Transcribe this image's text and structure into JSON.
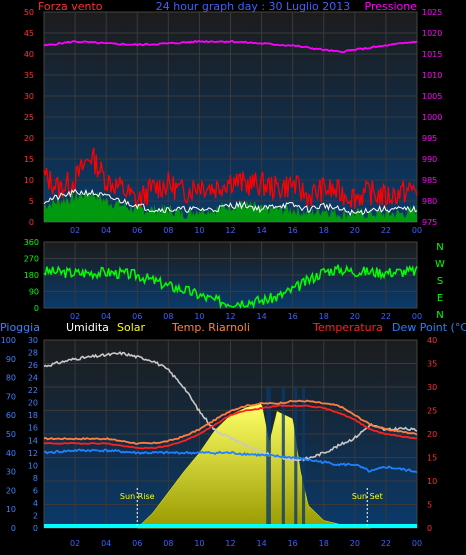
{
  "colors": {
    "wind_gust": "#ff0000",
    "wind_avg": "#00aa00",
    "wind_dir_line": "#ffffff",
    "pressure": "#ff00ff",
    "direction": "#00ff00",
    "rain": "#00ffff",
    "humidity": "#c8c8c8",
    "solar": "#ffff00",
    "heat_index": "#ff8040",
    "temperature": "#ff2020",
    "dew_point": "#2080ff",
    "axis_blue": "#4060ff",
    "axis_red": "#ff3030",
    "axis_green": "#00ff00",
    "axis_magenta": "#ff00ff"
  },
  "chart_data": [
    {
      "type": "line",
      "title": "24 hour graph day : 30 Luglio 2013",
      "left_label": "Forza vento ",
      "right_label": "Pressione",
      "x_ticks": [
        "02",
        "04",
        "06",
        "08",
        "10",
        "12",
        "14",
        "16",
        "18",
        "20",
        "22",
        "00"
      ],
      "y_left_ticks": [
        "0",
        "5",
        "10",
        "15",
        "20",
        "25",
        "30",
        "35",
        "40",
        "45",
        "50"
      ],
      "y_right_ticks": [
        "975",
        "980",
        "985",
        "990",
        "995",
        "1000",
        "1005",
        "1010",
        "1015",
        "1020",
        "1025"
      ],
      "ylim_left": [
        0,
        50
      ],
      "ylim_right": [
        975,
        1025
      ],
      "series": [
        {
          "name": "Pressione",
          "axis": "right",
          "x": [
            0,
            2,
            4,
            6,
            8,
            10,
            12,
            14,
            16,
            18,
            19,
            20,
            22,
            24
          ],
          "y": [
            1017,
            1018,
            1017.5,
            1017.2,
            1017.5,
            1018,
            1018,
            1017.5,
            1017,
            1016,
            1015.5,
            1016,
            1017,
            1018
          ]
        },
        {
          "name": "Forza vento",
          "axis": "left",
          "x": [
            0,
            1,
            2,
            3,
            4,
            5,
            6,
            7,
            8,
            9,
            10,
            11,
            12,
            13,
            14,
            15,
            16,
            17,
            18,
            19,
            20,
            21,
            22,
            23,
            24
          ],
          "y": [
            11,
            8,
            10,
            16,
            10,
            8,
            5,
            8,
            9,
            7,
            9,
            8,
            10,
            9,
            9,
            8,
            9,
            6,
            8,
            7,
            6,
            7,
            6,
            7,
            8
          ]
        },
        {
          "name": "",
          "axis": "left",
          "x": [
            0,
            1,
            2,
            3,
            4,
            5,
            6,
            7,
            8,
            9,
            10,
            11,
            12,
            13,
            14,
            15,
            16,
            17,
            18,
            19,
            20,
            21,
            22,
            23,
            24
          ],
          "y": [
            4,
            5,
            6,
            7,
            5,
            4,
            3,
            3,
            3,
            2,
            3,
            3,
            4,
            4,
            3,
            3,
            3,
            2,
            3,
            2,
            2,
            2,
            2,
            2,
            3
          ]
        },
        {
          "name": "",
          "axis": "left",
          "x": [
            0,
            1,
            2,
            3,
            4,
            5,
            6,
            7,
            8,
            9,
            10,
            11,
            12,
            13,
            14,
            15,
            16,
            17,
            18,
            19,
            20,
            21,
            22,
            23,
            24
          ],
          "y": [
            5,
            6,
            7,
            7,
            6,
            5,
            4,
            3,
            3,
            3,
            3,
            3,
            4,
            4,
            3,
            4,
            4,
            3,
            4,
            3,
            2,
            3,
            3,
            3,
            3
          ]
        }
      ]
    },
    {
      "type": "line",
      "right_letters": [
        "N",
        "W",
        "S",
        "E",
        "N"
      ],
      "x_ticks": [
        "02",
        "04",
        "06",
        "08",
        "10",
        "12",
        "14",
        "16",
        "18",
        "20",
        "22",
        "00"
      ],
      "y_ticks": [
        "0",
        "90",
        "180",
        "270",
        "360"
      ],
      "ylim": [
        0,
        360
      ],
      "series": [
        {
          "name": "",
          "x": [
            0,
            2,
            4,
            6,
            7,
            8,
            9,
            10,
            11,
            12,
            13,
            14,
            15,
            16,
            17,
            18,
            19,
            20,
            22,
            24
          ],
          "y": [
            200,
            190,
            195,
            180,
            150,
            120,
            100,
            70,
            40,
            30,
            35,
            40,
            60,
            100,
            150,
            200,
            210,
            200,
            195,
            200
          ]
        }
      ]
    },
    {
      "type": "line",
      "labels": {
        "rain": "Pioggia",
        "humidity": "Umidita",
        "solar": "Solar",
        "heat": "Temp. Riarnoli",
        "temp": "Temperatura",
        "dew": "Dew Point (°C)"
      },
      "annotations": {
        "sunrise": "Sun Rise",
        "sunset": "Sun Set"
      },
      "sunrise_hour": 6,
      "sunset_hour": 20.8,
      "x_ticks": [
        "02",
        "04",
        "06",
        "08",
        "10",
        "12",
        "14",
        "16",
        "18",
        "20",
        "22",
        "00"
      ],
      "y_left1_ticks": [
        "0",
        "10",
        "20",
        "30",
        "40",
        "50",
        "60",
        "70",
        "80",
        "90",
        "100"
      ],
      "y_left2_ticks": [
        "0",
        "2",
        "4",
        "6",
        "8",
        "10",
        "12",
        "14",
        "16",
        "18",
        "20",
        "22",
        "24",
        "26",
        "28",
        "30"
      ],
      "y_right_ticks": [
        "0",
        "5",
        "10",
        "15",
        "20",
        "25",
        "30",
        "35",
        "40"
      ],
      "ylim_humidity": [
        0,
        100
      ],
      "ylim_temp": [
        0,
        40
      ],
      "series": [
        {
          "name": "Umidita",
          "x": [
            0,
            1,
            2,
            4,
            5,
            6,
            7,
            8,
            9,
            10,
            11,
            12,
            13,
            14,
            15,
            16,
            17,
            18,
            19,
            20,
            21,
            22,
            23,
            24
          ],
          "y": [
            86,
            88,
            90,
            92,
            93,
            91,
            89,
            84,
            75,
            62,
            52,
            48,
            44,
            40,
            38,
            36,
            37,
            40,
            44,
            48,
            55,
            52,
            53,
            52
          ]
        },
        {
          "name": "Solar",
          "x": [
            0,
            6,
            7,
            8,
            9,
            10,
            11,
            12,
            13,
            14,
            14.5,
            15,
            16,
            16.5,
            17,
            18,
            19,
            20,
            21,
            24
          ],
          "y": [
            0,
            0,
            8,
            19,
            30,
            40,
            52,
            60,
            64,
            66,
            45,
            62,
            58,
            30,
            12,
            4,
            2,
            1,
            0,
            0
          ]
        },
        {
          "name": "Temp. Riarnoli",
          "x": [
            0,
            2,
            4,
            6,
            7,
            8,
            9,
            10,
            11,
            12,
            13,
            14,
            15,
            16,
            17,
            18,
            19,
            20,
            21,
            22,
            23,
            24
          ],
          "y": [
            19,
            19,
            19,
            18,
            18,
            18.5,
            19.5,
            21,
            23,
            25,
            26,
            26.5,
            26.5,
            27,
            27,
            26.5,
            26,
            24,
            22,
            21,
            20.5,
            20
          ]
        },
        {
          "name": "Temperatura",
          "x": [
            0,
            2,
            4,
            6,
            7,
            8,
            9,
            10,
            11,
            12,
            13,
            14,
            15,
            16,
            17,
            18,
            19,
            20,
            21,
            22,
            23,
            24
          ],
          "y": [
            18,
            18,
            18,
            17,
            17,
            17.5,
            18.5,
            20,
            22,
            24,
            25,
            25.5,
            26,
            26,
            26,
            25.5,
            24.5,
            23,
            21,
            20,
            19.5,
            19
          ]
        },
        {
          "name": "Dew Point (°C)",
          "x": [
            0,
            2,
            4,
            6,
            8,
            10,
            12,
            14,
            16,
            17,
            18,
            19,
            20,
            21,
            22,
            23,
            24
          ],
          "y": [
            16,
            16.5,
            16.5,
            16,
            16,
            16,
            16,
            15.5,
            15,
            14.5,
            14,
            13.5,
            13.5,
            12,
            13,
            12.5,
            12
          ]
        },
        {
          "name": "Pioggia",
          "x": [
            0,
            24
          ],
          "y": [
            0,
            0
          ]
        }
      ]
    }
  ]
}
